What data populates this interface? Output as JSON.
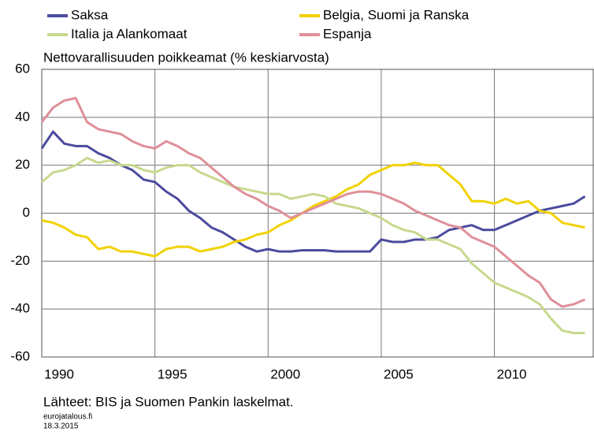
{
  "chart_data": {
    "type": "line",
    "y_label": "Nettovarallisuuden poikkeamat (% keskiarvosta)",
    "source": "Lähteet: BIS ja Suomen Pankin laskelmat.",
    "footer": [
      "eurojatalous.fi",
      "18.3.2015"
    ],
    "x": [
      1990,
      1990.5,
      1991,
      1991.5,
      1992,
      1992.5,
      1993,
      1993.5,
      1994,
      1994.5,
      1995,
      1995.5,
      1996,
      1996.5,
      1997,
      1997.5,
      1998,
      1998.5,
      1999,
      1999.5,
      2000,
      2000.5,
      2001,
      2001.5,
      2002,
      2002.5,
      2003,
      2003.5,
      2004,
      2004.5,
      2005,
      2005.5,
      2006,
      2006.5,
      2007,
      2007.5,
      2008,
      2008.5,
      2009,
      2009.5,
      2010,
      2010.5,
      2011,
      2011.5,
      2012,
      2012.5,
      2013,
      2013.5,
      2014
    ],
    "series": [
      {
        "name": "Saksa",
        "color": "#4b4b9e",
        "values": [
          27,
          34,
          29,
          28,
          28,
          25,
          23,
          20,
          18,
          14,
          13,
          9,
          6,
          1,
          -2,
          -6,
          -8,
          -11,
          -14,
          -16,
          -15,
          -16,
          -16,
          -15.5,
          -15.5,
          -15.5,
          -16,
          -16,
          -16,
          -16,
          -11,
          -12,
          -12,
          -11,
          -11,
          -10,
          -7,
          -6,
          -5,
          -7,
          -7,
          -5,
          -3,
          -1,
          1,
          2,
          3,
          4,
          7
        ]
      },
      {
        "name": "Belgia, Suomi ja Ranska",
        "color": "#f2d200",
        "values": [
          -3,
          -4,
          -6,
          -9,
          -10,
          -15,
          -14,
          -16,
          -16,
          -17,
          -18,
          -15,
          -14,
          -14,
          -16,
          -15,
          -14,
          -12,
          -11,
          -9,
          -8,
          -5,
          -3,
          0,
          3,
          5,
          7,
          10,
          12,
          16,
          18,
          20,
          20,
          21,
          20,
          20,
          16,
          12,
          5,
          5,
          4,
          6,
          4,
          5,
          1,
          0,
          -4,
          -5,
          -6
        ]
      },
      {
        "name": "Italia ja Alankomaat",
        "color": "#c6d98c",
        "values": [
          13,
          17,
          18,
          20,
          23,
          21,
          22,
          20,
          20,
          18,
          17,
          19,
          20,
          20,
          17,
          15,
          13,
          11,
          10,
          9,
          8,
          8,
          6,
          7,
          8,
          7,
          4,
          3,
          2,
          0,
          -2,
          -5,
          -7,
          -8,
          -11,
          -11,
          -13,
          -15,
          -21,
          -25,
          -29,
          -31,
          -33,
          -35,
          -38,
          -44,
          -49,
          -50,
          -50
        ]
      },
      {
        "name": "Espanja",
        "color": "#df8f99",
        "values": [
          38,
          44,
          47,
          48,
          38,
          35,
          34,
          33,
          30,
          28,
          27,
          30,
          28,
          25,
          23,
          19,
          15,
          11,
          8,
          6,
          3,
          1,
          -2,
          0,
          2,
          4,
          6,
          8,
          9,
          9,
          8,
          6,
          4,
          1,
          -1,
          -3,
          -5,
          -6,
          -10,
          -12,
          -14,
          -18,
          -22,
          -26,
          -29,
          -36,
          -39,
          -38,
          -36
        ]
      }
    ],
    "xlim": [
      1990,
      2014.4
    ],
    "xticks": [
      1990,
      1995,
      2000,
      2005,
      2010
    ],
    "ylim": [
      -60,
      60
    ],
    "yticks": [
      -60,
      -40,
      -20,
      0,
      20,
      40,
      60
    ],
    "grid": true
  }
}
